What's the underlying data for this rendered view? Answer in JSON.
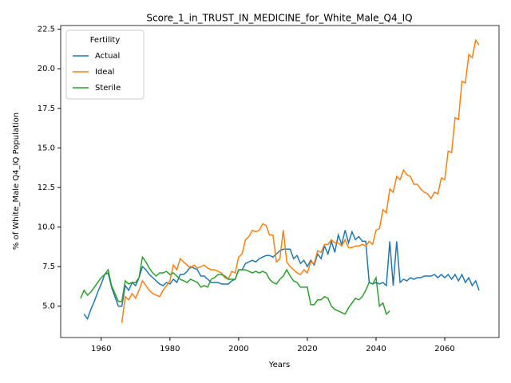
{
  "chart_data": {
    "type": "line",
    "title": "Score_1_in_TRUST_IN_MEDICINE_for_White_Male_Q4_IQ",
    "x_label": "Years",
    "y_label": "% of White_Male Q4_IQ Population",
    "legend_title": "Fertility",
    "legend": "upper left",
    "x": [
      1954,
      1955,
      1956,
      1957,
      1958,
      1959,
      1960,
      1961,
      1962,
      1963,
      1964,
      1965,
      1966,
      1967,
      1968,
      1969,
      1970,
      1971,
      1972,
      1973,
      1974,
      1975,
      1976,
      1977,
      1978,
      1979,
      1980,
      1981,
      1982,
      1983,
      1984,
      1985,
      1986,
      1987,
      1988,
      1989,
      1990,
      1991,
      1992,
      1993,
      1994,
      1995,
      1996,
      1997,
      1998,
      1999,
      2000,
      2001,
      2002,
      2003,
      2004,
      2005,
      2006,
      2007,
      2008,
      2009,
      2010,
      2011,
      2012,
      2013,
      2014,
      2015,
      2016,
      2017,
      2018,
      2019,
      2020,
      2021,
      2022,
      2023,
      2024,
      2025,
      2026,
      2027,
      2028,
      2029,
      2030,
      2031,
      2032,
      2033,
      2034,
      2035,
      2036,
      2037,
      2038,
      2039,
      2040,
      2041,
      2042,
      2043,
      2044,
      2045,
      2046,
      2047,
      2048,
      2049,
      2050,
      2051,
      2052,
      2053,
      2054,
      2055,
      2056,
      2057,
      2058,
      2059,
      2060,
      2061,
      2062,
      2063,
      2064,
      2065,
      2066,
      2067,
      2068,
      2069,
      2070
    ],
    "series": [
      {
        "name": "Actual",
        "color": "#1f77b4",
        "values": [
          null,
          4.5,
          4.2,
          4.8,
          5.3,
          5.9,
          6.4,
          7.0,
          7.1,
          6.2,
          5.6,
          5.0,
          5.0,
          6.3,
          6.0,
          6.5,
          6.3,
          6.8,
          7.5,
          7.3,
          7.0,
          6.8,
          6.6,
          6.4,
          6.3,
          6.5,
          6.4,
          6.7,
          6.5,
          7.0,
          7.0,
          7.2,
          7.5,
          7.4,
          7.3,
          6.9,
          6.9,
          6.7,
          6.5,
          6.5,
          6.5,
          6.4,
          6.4,
          6.4,
          6.6,
          6.7,
          7.3,
          7.3,
          7.7,
          7.8,
          7.9,
          7.8,
          8.0,
          8.1,
          8.2,
          8.2,
          8.1,
          8.3,
          8.5,
          8.6,
          8.6,
          8.6,
          8.0,
          8.2,
          7.7,
          7.9,
          7.5,
          7.9,
          7.6,
          8.3,
          8.0,
          8.8,
          8.3,
          9.1,
          8.4,
          9.5,
          8.9,
          9.8,
          9.0,
          9.7,
          9.2,
          9.4,
          9.1,
          9.1,
          6.5,
          6.4,
          6.5,
          6.4,
          6.5,
          6.3,
          9.1,
          6.3,
          9.1,
          6.5,
          6.7,
          6.6,
          6.8,
          6.7,
          6.8,
          6.8,
          6.9,
          6.9,
          6.9,
          7.0,
          6.8,
          7.0,
          6.8,
          7.0,
          6.7,
          7.0,
          6.6,
          7.0,
          6.5,
          6.8,
          6.3,
          6.6,
          6.0
        ]
      },
      {
        "name": "Ideal",
        "color": "#ff7f0e",
        "values": [
          null,
          null,
          null,
          null,
          null,
          null,
          null,
          null,
          null,
          null,
          null,
          null,
          3.95,
          5.6,
          5.4,
          5.8,
          5.5,
          6.0,
          6.6,
          6.3,
          6.0,
          5.8,
          5.7,
          5.6,
          6.0,
          6.3,
          6.6,
          7.6,
          7.3,
          8.0,
          7.8,
          7.6,
          7.4,
          7.6,
          7.4,
          7.5,
          7.6,
          7.4,
          7.3,
          7.3,
          7.2,
          7.1,
          6.8,
          6.7,
          7.2,
          7.1,
          8.1,
          8.3,
          9.2,
          9.4,
          9.8,
          9.7,
          9.8,
          10.2,
          10.1,
          9.5,
          9.5,
          7.8,
          8.0,
          9.8,
          7.8,
          7.5,
          7.3,
          7.1,
          7.0,
          7.3,
          7.1,
          7.8,
          7.7,
          8.5,
          8.4,
          8.9,
          8.9,
          9.2,
          9.0,
          9.0,
          8.8,
          9.2,
          8.7,
          8.7,
          8.8,
          8.8,
          8.9,
          8.8,
          9.1,
          8.9,
          9.8,
          9.9,
          11.1,
          10.9,
          12.4,
          12.2,
          13.2,
          13.0,
          13.6,
          13.3,
          13.2,
          12.7,
          12.7,
          12.4,
          12.2,
          12.1,
          11.8,
          12.2,
          12.1,
          13.1,
          13.0,
          14.8,
          14.7,
          16.9,
          16.8,
          19.2,
          19.1,
          20.9,
          20.7,
          21.8,
          21.5
        ]
      },
      {
        "name": "Sterile",
        "color": "#2ca02c",
        "values": [
          5.5,
          6.0,
          5.7,
          5.9,
          6.2,
          6.5,
          6.8,
          7.0,
          7.3,
          6.3,
          5.8,
          5.3,
          5.3,
          6.6,
          6.4,
          6.5,
          6.5,
          6.8,
          8.1,
          7.8,
          7.4,
          7.1,
          6.9,
          7.1,
          7.1,
          7.2,
          7.0,
          7.1,
          6.9,
          6.7,
          6.6,
          6.5,
          6.7,
          6.6,
          6.5,
          6.2,
          6.3,
          6.2,
          6.7,
          6.8,
          7.0,
          7.0,
          6.9,
          6.7,
          6.7,
          6.7,
          7.3,
          7.3,
          7.3,
          7.2,
          7.1,
          7.2,
          7.1,
          7.2,
          7.1,
          6.7,
          6.5,
          6.4,
          6.7,
          6.9,
          7.3,
          6.9,
          6.6,
          6.5,
          6.2,
          6.2,
          6.2,
          5.1,
          5.1,
          5.4,
          5.4,
          5.6,
          5.5,
          5.0,
          4.8,
          4.7,
          4.6,
          4.5,
          4.9,
          5.2,
          5.5,
          5.4,
          5.6,
          6.0,
          6.5,
          6.4,
          6.8,
          5.0,
          5.2,
          4.5,
          4.7,
          null,
          null,
          null,
          null,
          null,
          null,
          null,
          null,
          null,
          null,
          null,
          null,
          null,
          null,
          null,
          null,
          null,
          null,
          null,
          null,
          null,
          null,
          null,
          null,
          null,
          null
        ]
      }
    ],
    "xlim": [
      1948.2,
      2075.8
    ],
    "xticks": [
      1960,
      1980,
      2000,
      2020,
      2040,
      2060
    ],
    "ylim": [
      3.02,
      22.73
    ],
    "yticks": [
      {
        "value": 5,
        "label": "5.0"
      },
      {
        "value": 7.5,
        "label": "7.5"
      },
      {
        "value": 10,
        "label": "10.0"
      },
      {
        "value": 12.5,
        "label": "12.5"
      },
      {
        "value": 15,
        "label": "15.0"
      },
      {
        "value": 17.5,
        "label": "17.5"
      },
      {
        "value": 20,
        "label": "20.0"
      },
      {
        "value": 22.5,
        "label": "22.5"
      }
    ]
  }
}
